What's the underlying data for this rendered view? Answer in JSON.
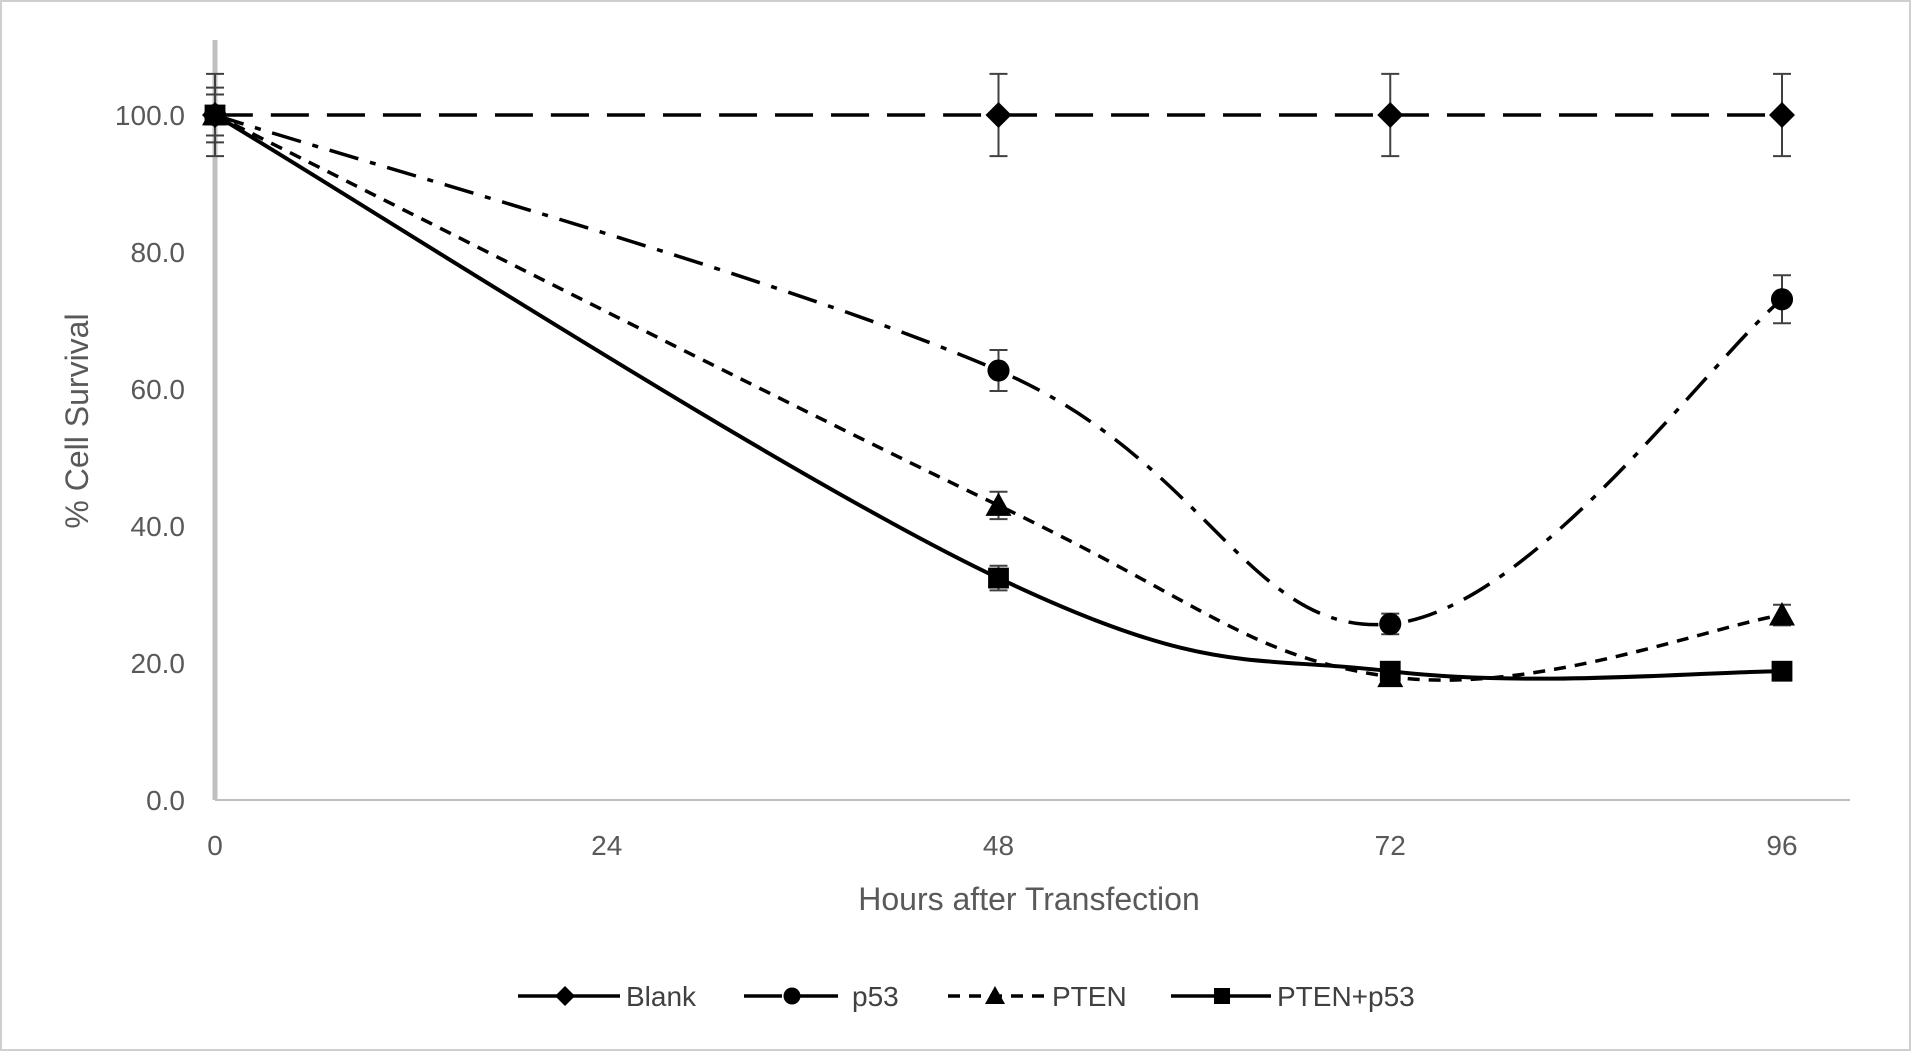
{
  "chart_data": {
    "type": "line",
    "title": "",
    "xlabel": "Hours after Transfection",
    "ylabel": "% Cell Survival",
    "x": [
      0,
      24,
      48,
      72,
      96
    ],
    "x_tick_labels": [
      "0",
      "24",
      "48",
      "72",
      "96"
    ],
    "xlim": [
      0,
      100
    ],
    "ylim": [
      0,
      110
    ],
    "y_ticks": [
      0,
      20,
      40,
      60,
      80,
      100
    ],
    "y_tick_labels": [
      "0.0",
      "20.0",
      "40.0",
      "60.0",
      "80.0",
      "100.0"
    ],
    "grid": false,
    "legend_position": "bottom",
    "series": [
      {
        "name": "Blank",
        "marker": "diamond",
        "dash": "long-dash",
        "x": [
          0,
          48,
          72,
          96
        ],
        "values": [
          100,
          100,
          100,
          100
        ],
        "errors": [
          6,
          6,
          6,
          6
        ],
        "legend_dash": "solid"
      },
      {
        "name": "p53",
        "marker": "circle",
        "dash": "dash-dot",
        "x": [
          0,
          48,
          72,
          96
        ],
        "values": [
          100,
          62.7,
          25.7,
          73.1
        ],
        "errors": [
          4,
          3,
          1.5,
          3.5
        ],
        "legend_dash": "long-dash"
      },
      {
        "name": "PTEN",
        "marker": "triangle",
        "dash": "short-dash",
        "x": [
          0,
          48,
          72,
          96
        ],
        "values": [
          100,
          43,
          18,
          27
        ],
        "errors": [
          3,
          2,
          1,
          1.5
        ],
        "legend_dash": "short-dash"
      },
      {
        "name": "PTEN+p53",
        "marker": "square",
        "dash": "solid",
        "x": [
          0,
          48,
          72,
          96
        ],
        "values": [
          100,
          32.4,
          18.8,
          18.8
        ],
        "errors": [
          3,
          1.8,
          0.8,
          0.8
        ],
        "legend_dash": "solid"
      }
    ]
  }
}
